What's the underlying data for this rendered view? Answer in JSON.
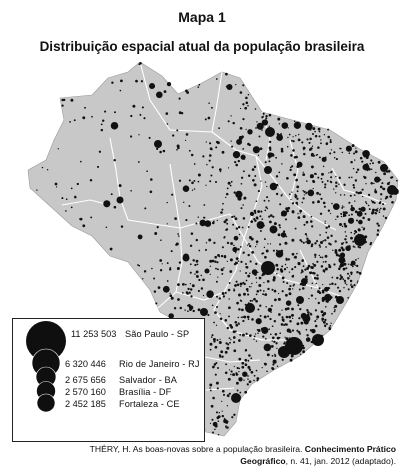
{
  "header": {
    "title": "Mapa 1",
    "subtitle": "Distribuição espacial atual da população brasileira"
  },
  "legend": {
    "entries": [
      {
        "value": "11 253 503",
        "label": "São Paulo - SP",
        "population": 11253503
      },
      {
        "value": "6 320 446",
        "label": "Rio de Janeiro - RJ",
        "population": 6320446
      },
      {
        "value": "2 675 656",
        "label": "Salvador - BA",
        "population": 2675656
      },
      {
        "value": "2 570 160",
        "label": "Brasília - DF",
        "population": 2570160
      },
      {
        "value": "2 452 185",
        "label": "Fortaleza - CE",
        "population": 2452185
      }
    ]
  },
  "source": {
    "line1_plain": "THÉRY, H. As boas-novas sobre a população brasileira. ",
    "line1_bold": "Conhecimento Prático",
    "line2_bold": "Geográfico",
    "line2_plain": ", n. 41, jan. 2012 (adaptado)."
  },
  "colors": {
    "land": "#c8c8c8",
    "border": "#ffffff",
    "dots": "#111111"
  }
}
